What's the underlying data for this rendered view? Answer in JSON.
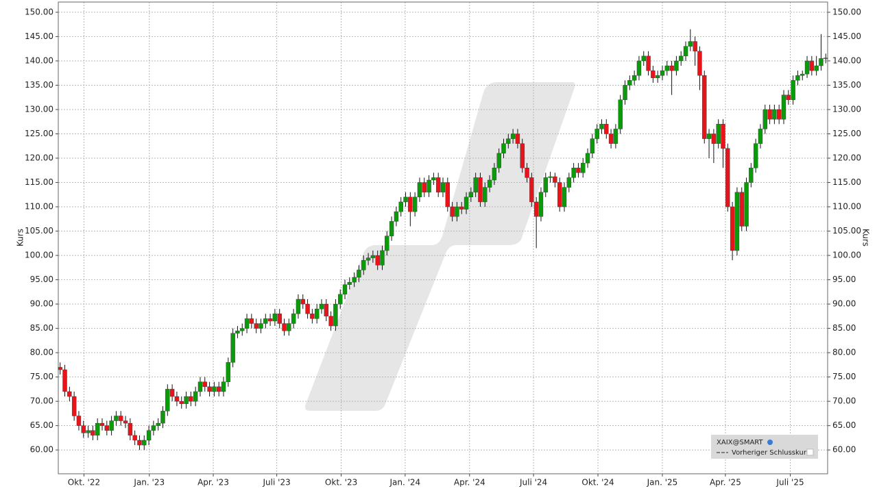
{
  "chart_data": {
    "type": "candlestick",
    "y_label": "Kurs",
    "legend": {
      "instrument": "XAIX@SMART",
      "previous_close": "Vorheriger Schlusskurs"
    },
    "up_color": "#0a9a0a",
    "down_color": "#e8141b",
    "xlim": [
      -0.4,
      164.4
    ],
    "xticks": [
      {
        "value": 5.1,
        "label": "Okt. '22"
      },
      {
        "value": 19.1,
        "label": "Jan. '23"
      },
      {
        "value": 32.8,
        "label": "Apr. '23"
      },
      {
        "value": 46.4,
        "label": "Juli '23"
      },
      {
        "value": 60.2,
        "label": "Okt. '23"
      },
      {
        "value": 73.9,
        "label": "Jan. '24"
      },
      {
        "value": 87.7,
        "label": "Apr. '24"
      },
      {
        "value": 101.4,
        "label": "Juli '24"
      },
      {
        "value": 115.2,
        "label": "Okt. '24"
      },
      {
        "value": 129.0,
        "label": "Jan. '25"
      },
      {
        "value": 142.5,
        "label": "Apr. '25"
      },
      {
        "value": 156.4,
        "label": "Juli '25"
      }
    ],
    "ylim": [
      55.1,
      152.1
    ],
    "yticks": [
      {
        "value": 60,
        "label": "60.00"
      },
      {
        "value": 65,
        "label": "65.00"
      },
      {
        "value": 70,
        "label": "70.00"
      },
      {
        "value": 75,
        "label": "75.00"
      },
      {
        "value": 80,
        "label": "80.00"
      },
      {
        "value": 85,
        "label": "85.00"
      },
      {
        "value": 90,
        "label": "90.00"
      },
      {
        "value": 95,
        "label": "95.00"
      },
      {
        "value": 100,
        "label": "100.00"
      },
      {
        "value": 105,
        "label": "105.00"
      },
      {
        "value": 110,
        "label": "110.00"
      },
      {
        "value": 115,
        "label": "115.00"
      },
      {
        "value": 120,
        "label": "120.00"
      },
      {
        "value": 125,
        "label": "125.00"
      },
      {
        "value": 130,
        "label": "130.00"
      },
      {
        "value": 135,
        "label": "135.00"
      },
      {
        "value": 140,
        "label": "140.00"
      },
      {
        "value": 145,
        "label": "145.00"
      },
      {
        "value": 150,
        "label": "150.00"
      }
    ],
    "grid": true,
    "open": [
      77,
      76.5,
      72,
      71,
      67,
      65,
      63.5,
      64,
      63,
      65.5,
      65,
      64,
      66,
      67,
      66,
      65.5,
      63,
      62,
      61,
      62,
      64,
      65,
      65.5,
      68,
      72.5,
      71,
      70,
      69.5,
      71,
      70,
      72,
      74,
      73,
      72,
      73,
      72,
      74,
      78,
      84,
      84.5,
      85,
      87,
      86,
      85,
      86,
      87,
      86.5,
      88,
      86,
      84.5,
      86,
      88,
      91,
      90,
      88,
      87,
      89,
      90,
      87.5,
      85.5,
      90,
      92,
      94,
      94.5,
      95.5,
      97,
      99,
      99.5,
      100,
      98,
      101,
      104,
      107,
      109,
      111,
      112,
      109,
      112,
      115,
      113,
      115.5,
      116,
      113,
      115,
      110,
      108,
      110,
      109.5,
      112,
      113,
      116,
      111,
      114,
      115.5,
      118,
      121,
      123,
      124,
      125,
      123,
      118,
      116,
      111,
      108,
      113,
      116,
      116.2,
      115,
      110,
      114,
      116,
      118,
      117,
      119,
      121,
      124,
      126,
      127,
      125,
      123,
      126,
      132,
      135,
      136,
      137,
      140,
      141,
      138,
      136.5,
      137,
      138,
      139,
      138,
      140,
      141,
      143,
      144,
      142,
      137,
      124,
      125,
      123,
      127,
      122,
      110,
      101,
      113,
      106,
      115,
      118,
      123,
      126,
      130,
      128,
      130,
      128,
      133,
      132,
      136,
      137,
      137.3,
      140,
      138,
      139,
      140.5
    ],
    "close": [
      76.5,
      72,
      71,
      67,
      65,
      63.5,
      64,
      63,
      65.5,
      65,
      64,
      66,
      67,
      66,
      65.5,
      63,
      62,
      61,
      62,
      64,
      65,
      65.5,
      68,
      72.5,
      71,
      70,
      69.5,
      71,
      70,
      72,
      74,
      73,
      72,
      73,
      72,
      74,
      78,
      84,
      84.5,
      85,
      87,
      86,
      85,
      86,
      87,
      86.5,
      88,
      86,
      84.5,
      86,
      88,
      91,
      90,
      88,
      87,
      89,
      90,
      87.5,
      85.5,
      90,
      92,
      94,
      94.5,
      95.5,
      97,
      99,
      99.5,
      100,
      98,
      101,
      104,
      107,
      109,
      111,
      112,
      109,
      112,
      115,
      113,
      115.5,
      116,
      113,
      115,
      110,
      108,
      110,
      109.5,
      112,
      113,
      116,
      111,
      114,
      115.5,
      118,
      121,
      123,
      124,
      125,
      123,
      118,
      116,
      111,
      108,
      113,
      116,
      116.2,
      115,
      110,
      114,
      116,
      118,
      117,
      119,
      121,
      124,
      126,
      127,
      125,
      123,
      126,
      132,
      135,
      136,
      137,
      140,
      141,
      138,
      136.5,
      137,
      138,
      139,
      138,
      140,
      141,
      143,
      144,
      142,
      137,
      124,
      125,
      123,
      127,
      122,
      110,
      101,
      113,
      106,
      115,
      118,
      123,
      126,
      130,
      128,
      130,
      128,
      133,
      132,
      136,
      137,
      137.3,
      140,
      138,
      139,
      140.5,
      140.6
    ],
    "high": [
      78,
      77.5,
      73,
      72,
      68,
      66,
      65,
      65,
      66.5,
      66.5,
      66,
      67,
      68,
      68,
      67,
      66.5,
      64,
      63,
      63,
      65,
      66,
      66.5,
      69,
      73.5,
      73.5,
      72,
      71,
      72,
      72,
      73,
      75,
      75,
      74,
      74,
      74,
      75,
      79,
      85,
      85.5,
      86,
      88,
      88,
      87,
      87,
      88,
      88,
      89,
      89,
      87,
      87,
      89,
      92,
      92,
      91,
      89,
      90,
      91,
      91,
      88.5,
      91,
      93,
      95,
      95.5,
      96.5,
      98,
      100,
      100.5,
      101,
      101,
      102,
      105,
      108,
      110,
      112,
      113,
      113,
      113,
      116,
      116,
      116.5,
      117,
      117,
      116,
      116,
      111,
      111,
      111,
      113,
      114,
      117,
      117,
      115,
      116.5,
      119,
      122,
      124,
      125,
      126,
      126,
      124,
      119,
      117,
      112,
      114,
      117,
      117.2,
      117,
      116,
      115,
      117,
      119,
      119,
      120,
      122,
      125,
      127,
      128,
      128,
      126,
      127,
      133,
      136,
      137,
      138,
      141,
      142,
      142,
      139,
      138,
      139,
      140,
      140,
      141,
      142,
      144,
      146.5,
      145,
      143,
      138,
      126,
      126,
      128,
      128,
      123,
      111,
      114,
      114,
      116,
      119,
      124,
      127,
      131,
      131,
      131,
      131,
      134,
      134,
      137,
      138,
      138,
      141,
      141,
      141,
      145.5,
      141.5
    ],
    "low": [
      75.5,
      71,
      70,
      66,
      64,
      62.5,
      62.5,
      62,
      62,
      64,
      63,
      63,
      65,
      65,
      64.5,
      62,
      61,
      60,
      60,
      61,
      63,
      64,
      64.5,
      67,
      70,
      69,
      68.5,
      68.5,
      69,
      69,
      71,
      72,
      71,
      71,
      71,
      71,
      73,
      77,
      83,
      83.5,
      84,
      85,
      84,
      84,
      85,
      85.5,
      85.5,
      85,
      83.5,
      83.5,
      85,
      87,
      89,
      87,
      86,
      86,
      88,
      86.5,
      84.5,
      84.5,
      89,
      91,
      93,
      93.5,
      94.5,
      96,
      98,
      98.5,
      97,
      97,
      100,
      103,
      106,
      108,
      110,
      106,
      108,
      111,
      112,
      112,
      114.5,
      112,
      112,
      109,
      107,
      107,
      108.5,
      108.5,
      111,
      112,
      110,
      110,
      113,
      114.5,
      117,
      120,
      122,
      123,
      122,
      117,
      115,
      110,
      101.5,
      107,
      112,
      115,
      114,
      109,
      109,
      113,
      115,
      116,
      116,
      118,
      120,
      123,
      125,
      124,
      122,
      122,
      125,
      131,
      134,
      135,
      136,
      139,
      137,
      135.5,
      135.5,
      136,
      137,
      133,
      137,
      139,
      140,
      142,
      139,
      134,
      123,
      120,
      119,
      122,
      118,
      109,
      99,
      100,
      105,
      105,
      114,
      117,
      122,
      125,
      127,
      127,
      127,
      127,
      131,
      131,
      135,
      136,
      136.5,
      137,
      137,
      138,
      139.5
    ]
  }
}
